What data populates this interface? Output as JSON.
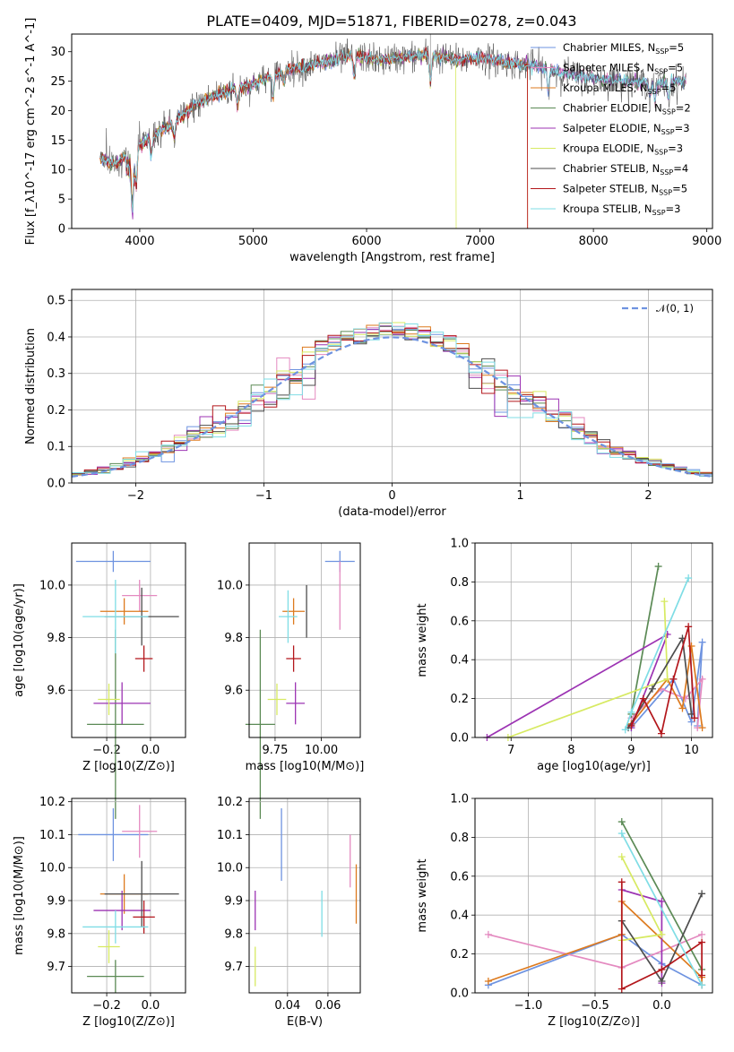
{
  "title": "PLATE=0409, MJD=51871, FIBERID=0278, z=0.043",
  "colors": {
    "Chabrier MILES": "#6e93e0",
    "Salpeter MILES": "#e48ac0",
    "Kroupa MILES": "#dd7a1e",
    "Chabrier ELODIE": "#5b8a55",
    "Salpeter ELODIE": "#9c33b3",
    "Kroupa ELODIE": "#d7ea62",
    "Chabrier STELIB": "#4d4d4d",
    "Salpeter STELIB": "#b3161b",
    "Kroupa STELIB": "#7fdde5"
  },
  "chart_data": [
    {
      "id": "spectrum",
      "type": "line",
      "xlabel": "wavelength [Angstrom, rest frame]",
      "ylabel": "Flux [f_λ10^-17 erg cm^-2 s^-1 A^-1]",
      "xlim": [
        3400,
        9050
      ],
      "ylim": [
        0,
        33
      ],
      "xticks": [
        4000,
        5000,
        6000,
        7000,
        8000,
        9000
      ],
      "yticks": [
        0,
        5,
        10,
        15,
        20,
        25,
        30
      ],
      "grid": false,
      "legend": [
        "Chabrier MILES, N_SSP=5",
        "Salpeter MILES, N_SSP=5",
        "Kroupa MILES, N_SSP=5",
        "Chabrier ELODIE, N_SSP=2",
        "Salpeter ELODIE, N_SSP=3",
        "Kroupa ELODIE, N_SSP=3",
        "Chabrier STELIB, N_SSP=4",
        "Salpeter STELIB, N_SSP=5",
        "Kroupa STELIB, N_SSP=3"
      ],
      "legend_placement": "upper right",
      "continuum": [
        [
          3650,
          12
        ],
        [
          3800,
          11
        ],
        [
          3950,
          13.5
        ],
        [
          4100,
          15.5
        ],
        [
          4300,
          18
        ],
        [
          4500,
          21
        ],
        [
          4700,
          23
        ],
        [
          5000,
          24.5
        ],
        [
          5300,
          27
        ],
        [
          5600,
          28
        ],
        [
          5900,
          29.5
        ],
        [
          6100,
          28.5
        ],
        [
          6300,
          29
        ],
        [
          6560,
          29.5
        ],
        [
          6800,
          28.5
        ],
        [
          7000,
          29
        ],
        [
          7300,
          28
        ],
        [
          7500,
          27.5
        ],
        [
          7700,
          26.5
        ],
        [
          8000,
          25.5
        ],
        [
          8300,
          25
        ],
        [
          8600,
          24.5
        ],
        [
          8820,
          25
        ]
      ],
      "model_truncations": [
        {
          "series": "Kroupa ELODIE",
          "end": 6790
        },
        {
          "series": "Kroupa MILES",
          "end": 7420
        },
        {
          "series": "Salpeter STELIB",
          "end": 7420
        }
      ]
    },
    {
      "id": "residuals",
      "type": "histogram",
      "xlabel": "(data-model)/error",
      "ylabel": "Normed distribution",
      "xlim": [
        -2.5,
        2.5
      ],
      "ylim": [
        0,
        0.53
      ],
      "xticks": [
        -2,
        -1,
        0,
        1,
        2
      ],
      "yticks": [
        0.0,
        0.1,
        0.2,
        0.3,
        0.4,
        0.5
      ],
      "grid": true,
      "legend": "N(0,1)",
      "legend_placement": "upper right",
      "bin_width": 0.1
    },
    {
      "id": "age_vs_Z",
      "type": "errorbar",
      "xlabel": "Z [log10(Z/Z⊙)]",
      "ylabel": "age  [log10(age/yr)]",
      "xlim": [
        -0.36,
        0.16
      ],
      "ylim": [
        9.42,
        10.16
      ],
      "xticks": [
        -0.2,
        0.0
      ],
      "yticks": [
        9.6,
        9.8,
        10.0
      ],
      "grid": true,
      "points": [
        {
          "series": "Chabrier MILES",
          "x": -0.17,
          "y": 10.09,
          "xerr": 0.17,
          "yerr": 0.04
        },
        {
          "series": "Salpeter MILES",
          "x": -0.05,
          "y": 9.96,
          "xerr": 0.08,
          "yerr": 0.06
        },
        {
          "series": "Kroupa MILES",
          "x": -0.12,
          "y": 9.9,
          "xerr": 0.11,
          "yerr": 0.05
        },
        {
          "series": "Chabrier ELODIE",
          "x": -0.16,
          "y": 9.47,
          "xerr": 0.13,
          "yerr": 0.36
        },
        {
          "series": "Salpeter ELODIE",
          "x": -0.13,
          "y": 9.55,
          "xerr": 0.13,
          "yerr": 0.08
        },
        {
          "series": "Kroupa ELODIE",
          "x": -0.19,
          "y": 9.565,
          "xerr": 0.05,
          "yerr": 0.06
        },
        {
          "series": "Chabrier STELIB",
          "x": -0.04,
          "y": 9.88,
          "xerr": 0.17,
          "yerr": 0.11
        },
        {
          "series": "Salpeter STELIB",
          "x": -0.03,
          "y": 9.72,
          "xerr": 0.04,
          "yerr": 0.05
        },
        {
          "series": "Kroupa STELIB",
          "x": -0.16,
          "y": 9.88,
          "xerr": 0.15,
          "yerr": 0.14
        }
      ]
    },
    {
      "id": "age_vs_mass",
      "type": "errorbar",
      "xlabel": "mass [log10(M/M⊙)]",
      "ylabel": "",
      "xlim": [
        9.61,
        10.21
      ],
      "ylim": [
        9.42,
        10.16
      ],
      "xticks": [
        9.75,
        10.0
      ],
      "yticks": [
        9.6,
        9.8,
        10.0
      ],
      "grid": true,
      "points": [
        {
          "series": "Chabrier MILES",
          "x": 10.1,
          "y": 10.09,
          "xerr": 0.08,
          "yerr": 0.04
        },
        {
          "series": "Salpeter MILES",
          "x": 10.1,
          "y": 9.96,
          "xerr": 0.0,
          "yerr": 0.13
        },
        {
          "series": "Kroupa MILES",
          "x": 9.85,
          "y": 9.9,
          "xerr": 0.06,
          "yerr": 0.05
        },
        {
          "series": "Chabrier ELODIE",
          "x": 9.67,
          "y": 9.47,
          "xerr": 0.08,
          "yerr": 0.36
        },
        {
          "series": "Salpeter ELODIE",
          "x": 9.86,
          "y": 9.55,
          "xerr": 0.05,
          "yerr": 0.08
        },
        {
          "series": "Kroupa ELODIE",
          "x": 9.76,
          "y": 9.565,
          "xerr": 0.05,
          "yerr": 0.06
        },
        {
          "series": "Chabrier STELIB",
          "x": 9.92,
          "y": 9.9,
          "xerr": 0.0,
          "yerr": 0.1
        },
        {
          "series": "Salpeter STELIB",
          "x": 9.85,
          "y": 9.72,
          "xerr": 0.04,
          "yerr": 0.05
        },
        {
          "series": "Kroupa STELIB",
          "x": 9.82,
          "y": 9.88,
          "xerr": 0.05,
          "yerr": 0.1
        }
      ]
    },
    {
      "id": "weight_vs_age",
      "type": "line",
      "xlabel": "age  [log10(age/yr)]",
      "ylabel": "mass weight",
      "xlim": [
        6.4,
        10.35
      ],
      "ylim": [
        0,
        1.0
      ],
      "xticks": [
        7,
        8,
        9,
        10
      ],
      "yticks": [
        0.0,
        0.2,
        0.4,
        0.6,
        0.8,
        1.0
      ],
      "grid": true,
      "series": [
        {
          "name": "Chabrier MILES",
          "x": [
            9.0,
            9.7,
            10.0,
            10.18,
            10.1
          ],
          "y": [
            0.05,
            0.3,
            0.08,
            0.49,
            0.06
          ]
        },
        {
          "name": "Salpeter MILES",
          "x": [
            9.0,
            9.5,
            9.9,
            10.18,
            10.1
          ],
          "y": [
            0.1,
            0.25,
            0.2,
            0.3,
            0.05
          ]
        },
        {
          "name": "Kroupa MILES",
          "x": [
            9.0,
            9.6,
            9.85,
            10.0,
            10.18
          ],
          "y": [
            0.07,
            0.3,
            0.15,
            0.47,
            0.05
          ]
        },
        {
          "name": "Chabrier ELODIE",
          "x": [
            9.0,
            9.45
          ],
          "y": [
            0.12,
            0.88
          ]
        },
        {
          "name": "Salpeter ELODIE",
          "x": [
            6.6,
            9.6,
            9.0
          ],
          "y": [
            0.0,
            0.53,
            0.05
          ]
        },
        {
          "name": "Kroupa ELODIE",
          "x": [
            6.95,
            9.6,
            9.55
          ],
          "y": [
            0.0,
            0.3,
            0.7
          ]
        },
        {
          "name": "Chabrier STELIB",
          "x": [
            8.95,
            9.35,
            9.85,
            10.0
          ],
          "y": [
            0.05,
            0.25,
            0.51,
            0.12
          ]
        },
        {
          "name": "Salpeter STELIB",
          "x": [
            9.0,
            9.2,
            9.5,
            9.7,
            9.95,
            10.05
          ],
          "y": [
            0.06,
            0.2,
            0.02,
            0.3,
            0.57,
            0.1
          ]
        },
        {
          "name": "Kroupa STELIB",
          "x": [
            8.9,
            9.0,
            9.95
          ],
          "y": [
            0.04,
            0.13,
            0.82
          ]
        }
      ]
    },
    {
      "id": "mass_vs_Z",
      "type": "errorbar",
      "xlabel": "Z [log10(Z/Z⊙)]",
      "ylabel": "mass [log10(M/M⊙)]",
      "xlim": [
        -0.36,
        0.16
      ],
      "ylim": [
        9.62,
        10.21
      ],
      "xticks": [
        -0.2,
        0.0
      ],
      "yticks": [
        9.7,
        9.8,
        9.9,
        10.0,
        10.1,
        10.2
      ],
      "grid": true,
      "points": [
        {
          "series": "Chabrier MILES",
          "x": -0.17,
          "y": 10.1,
          "xerr": 0.16,
          "yerr": 0.08
        },
        {
          "series": "Salpeter MILES",
          "x": -0.05,
          "y": 10.11,
          "xerr": 0.08,
          "yerr": 0.08
        },
        {
          "series": "Kroupa MILES",
          "x": -0.12,
          "y": 9.92,
          "xerr": 0.11,
          "yerr": 0.06
        },
        {
          "series": "Chabrier ELODIE",
          "x": -0.16,
          "y": 9.67,
          "xerr": 0.13,
          "yerr": 0.05
        },
        {
          "series": "Salpeter ELODIE",
          "x": -0.13,
          "y": 9.87,
          "xerr": 0.13,
          "yerr": 0.06
        },
        {
          "series": "Kroupa ELODIE",
          "x": -0.19,
          "y": 9.76,
          "xerr": 0.05,
          "yerr": 0.05
        },
        {
          "series": "Chabrier STELIB",
          "x": -0.04,
          "y": 9.92,
          "xerr": 0.17,
          "yerr": 0.1
        },
        {
          "series": "Salpeter STELIB",
          "x": -0.03,
          "y": 9.85,
          "xerr": 0.05,
          "yerr": 0.05
        },
        {
          "series": "Kroupa STELIB",
          "x": -0.16,
          "y": 9.82,
          "xerr": 0.15,
          "yerr": 0.05
        }
      ]
    },
    {
      "id": "mass_vs_ebv",
      "type": "errorbar",
      "xlabel": "E(B-V)",
      "ylabel": "",
      "xlim": [
        0.021,
        0.076
      ],
      "ylim": [
        9.62,
        10.21
      ],
      "xticks": [
        0.04,
        0.06
      ],
      "yticks": [
        9.7,
        9.8,
        9.9,
        10.0,
        10.1,
        10.2
      ],
      "grid": true,
      "points": [
        {
          "series": "Chabrier MILES",
          "x": 0.037,
          "y": 10.07,
          "xerr": 0.0,
          "yerr": 0.11
        },
        {
          "series": "Salpeter MILES",
          "x": 0.071,
          "y": 10.02,
          "xerr": 0.0,
          "yerr": 0.08
        },
        {
          "series": "Kroupa MILES",
          "x": 0.074,
          "y": 9.92,
          "xerr": 0.0,
          "yerr": 0.09
        },
        {
          "series": "Salpeter ELODIE",
          "x": 0.024,
          "y": 9.87,
          "xerr": 0.0,
          "yerr": 0.06
        },
        {
          "series": "Kroupa ELODIE",
          "x": 0.024,
          "y": 9.7,
          "xerr": 0.0,
          "yerr": 0.06
        },
        {
          "series": "Kroupa STELIB",
          "x": 0.057,
          "y": 9.86,
          "xerr": 0.0,
          "yerr": 0.07
        }
      ]
    },
    {
      "id": "weight_vs_Z",
      "type": "line",
      "xlabel": "Z [log10(Z/Z⊙)]",
      "ylabel": "mass weight",
      "xlim": [
        -1.4,
        0.38
      ],
      "ylim": [
        0,
        1.0
      ],
      "xticks": [
        -1.0,
        -0.5,
        0.0
      ],
      "yticks": [
        0.0,
        0.2,
        0.4,
        0.6,
        0.8,
        1.0
      ],
      "grid": true,
      "series": [
        {
          "name": "Chabrier MILES",
          "x": [
            -1.3,
            -0.3,
            0.0,
            0.3
          ],
          "y": [
            0.04,
            0.3,
            0.15,
            0.04
          ]
        },
        {
          "name": "Salpeter MILES",
          "x": [
            -1.3,
            -0.3,
            0.3
          ],
          "y": [
            0.3,
            0.13,
            0.3
          ]
        },
        {
          "name": "Kroupa MILES",
          "x": [
            -1.3,
            -0.3,
            -0.3,
            0.3,
            0.3
          ],
          "y": [
            0.06,
            0.3,
            0.47,
            0.08,
            0.04
          ]
        },
        {
          "name": "Chabrier ELODIE",
          "x": [
            -0.3,
            0.3
          ],
          "y": [
            0.88,
            0.12
          ]
        },
        {
          "name": "Salpeter ELODIE",
          "x": [
            -0.3,
            0.0,
            0.0
          ],
          "y": [
            0.53,
            0.47,
            0.05
          ]
        },
        {
          "name": "Kroupa ELODIE",
          "x": [
            -0.3,
            0.0,
            -0.3
          ],
          "y": [
            0.7,
            0.3,
            0.27
          ]
        },
        {
          "name": "Chabrier STELIB",
          "x": [
            -0.3,
            0.0,
            0.3
          ],
          "y": [
            0.37,
            0.06,
            0.51
          ]
        },
        {
          "name": "Salpeter STELIB",
          "x": [
            -0.3,
            -0.3,
            0.0,
            0.3,
            0.3
          ],
          "y": [
            0.57,
            0.02,
            0.12,
            0.26,
            0.09
          ]
        },
        {
          "name": "Kroupa STELIB",
          "x": [
            -0.3,
            0.3
          ],
          "y": [
            0.82,
            0.04
          ]
        }
      ]
    }
  ]
}
